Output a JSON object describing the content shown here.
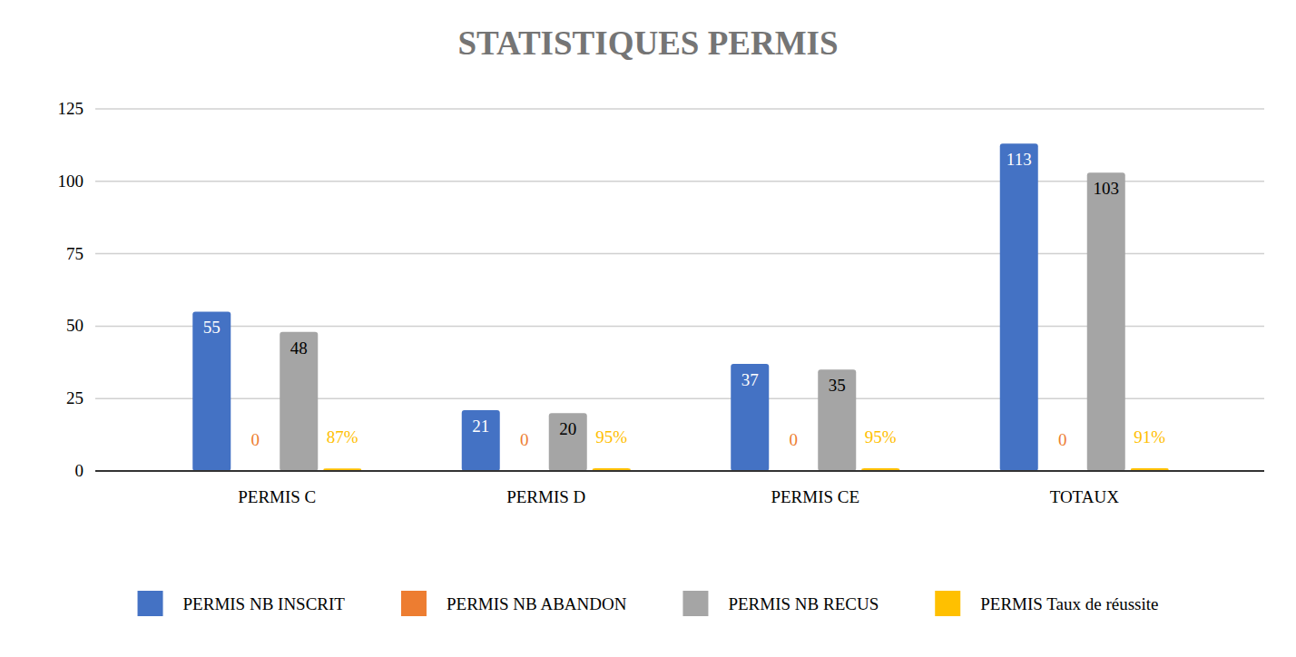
{
  "chart_data": {
    "type": "bar",
    "title": "STATISTIQUES PERMIS",
    "categories": [
      "PERMIS C",
      "PERMIS D",
      "PERMIS CE",
      "TOTAUX"
    ],
    "series": [
      {
        "name": "PERMIS NB INSCRIT",
        "color": "#4472c4",
        "values": [
          55,
          21,
          37,
          113
        ]
      },
      {
        "name": "PERMIS NB ABANDON",
        "color": "#ed7d31",
        "values": [
          0,
          0,
          0,
          0
        ]
      },
      {
        "name": "PERMIS NB RECUS",
        "color": "#a5a5a5",
        "values": [
          48,
          20,
          35,
          103
        ]
      },
      {
        "name": "PERMIS Taux de réussite",
        "color": "#ffc000",
        "values": [
          0.87,
          0.95,
          0.95,
          0.91
        ],
        "value_labels": [
          "87%",
          "95%",
          "95%",
          "91%"
        ]
      }
    ],
    "ylim": [
      0,
      125
    ],
    "yticks": [
      0,
      25,
      50,
      75,
      100,
      125
    ],
    "grid": true,
    "data_labels": true,
    "legend": "bottom"
  }
}
